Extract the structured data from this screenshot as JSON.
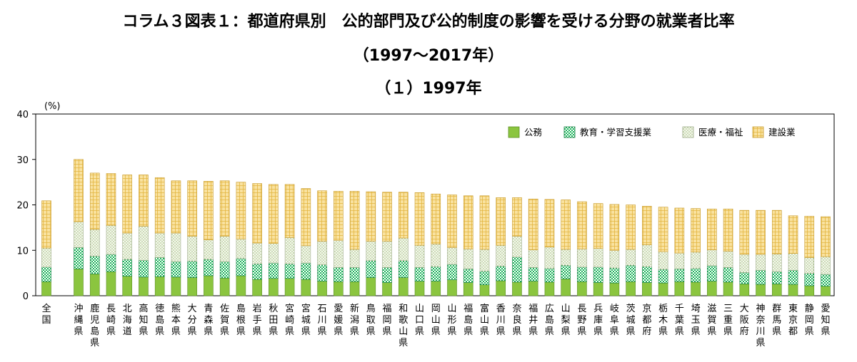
{
  "titles": {
    "main": "コラム３図表１：都道府県別　公的部門及び公的制度の影響を受ける分野の就業者比率",
    "period": "（1997～2017年）",
    "sub": "（１）1997年"
  },
  "colors": {
    "public_service": "#8bc53f",
    "education": "#1bb35a",
    "medical": "#e8f0d8",
    "construction": "#f7d88a"
  },
  "chart_data": {
    "type": "bar",
    "stacked": true,
    "unit": "(%)",
    "ylim": [
      0,
      40
    ],
    "yticks": [
      0,
      10,
      20,
      30,
      40
    ],
    "grid": false,
    "legend_position": "top-right",
    "categories": [
      "全国",
      "沖縄県",
      "鹿児島県",
      "長崎県",
      "北海道",
      "高知県",
      "徳島県",
      "熊本県",
      "大分県",
      "青森県",
      "佐賀県",
      "島根県",
      "岩手県",
      "秋田県",
      "宮崎県",
      "宮城県",
      "石川県",
      "愛媛県",
      "新潟県",
      "鳥取県",
      "福岡県",
      "和歌山県",
      "山口県",
      "岡山県",
      "山形県",
      "福島県",
      "富山県",
      "香川県",
      "奈良県",
      "福井県",
      "広島県",
      "山梨県",
      "長野県",
      "兵庫県",
      "岐阜県",
      "茨城県",
      "京都府",
      "栃木県",
      "千葉県",
      "埼玉県",
      "滋賀県",
      "三重県",
      "大阪府",
      "神奈川県",
      "群馬県",
      "東京都",
      "静岡県",
      "愛知県"
    ],
    "series": [
      {
        "name": "公務",
        "values": [
          3.1,
          5.9,
          4.8,
          5.3,
          4.3,
          4.1,
          4.2,
          4.1,
          4.0,
          4.4,
          3.9,
          4.4,
          3.6,
          3.8,
          3.8,
          3.6,
          3.2,
          3.1,
          3.1,
          4.0,
          2.9,
          4.0,
          3.2,
          3.2,
          3.5,
          2.9,
          2.4,
          3.3,
          3.0,
          3.2,
          3.0,
          3.7,
          3.1,
          2.9,
          2.8,
          3.1,
          2.9,
          2.8,
          3.1,
          3.0,
          3.2,
          3.0,
          2.6,
          2.5,
          2.6,
          2.5,
          2.2,
          2.1
        ]
      },
      {
        "name": "教育・学習支援業",
        "values": [
          3.2,
          4.7,
          3.9,
          3.8,
          3.7,
          3.7,
          4.2,
          3.4,
          3.6,
          3.6,
          3.6,
          3.8,
          3.4,
          3.4,
          3.2,
          3.6,
          3.6,
          3.1,
          3.1,
          3.7,
          3.3,
          3.7,
          3.0,
          3.2,
          3.4,
          3.0,
          3.0,
          3.2,
          5.5,
          3.0,
          3.0,
          3.0,
          3.2,
          3.4,
          3.3,
          3.6,
          3.5,
          3.0,
          2.8,
          3.0,
          3.4,
          3.2,
          2.5,
          3.1,
          2.7,
          3.1,
          2.7,
          2.6
        ]
      },
      {
        "name": "医療・福祉",
        "values": [
          4.2,
          5.7,
          5.9,
          6.4,
          5.8,
          7.5,
          5.4,
          6.3,
          5.5,
          4.3,
          5.6,
          4.3,
          4.6,
          4.3,
          5.8,
          3.8,
          5.2,
          6.0,
          4.0,
          4.3,
          5.8,
          5.0,
          4.9,
          5.0,
          3.7,
          4.4,
          4.8,
          4.6,
          4.6,
          3.9,
          4.7,
          3.5,
          4.0,
          4.1,
          3.9,
          3.5,
          4.8,
          3.9,
          3.5,
          3.6,
          3.5,
          3.6,
          4.0,
          3.5,
          3.9,
          3.7,
          3.5,
          3.9
        ]
      },
      {
        "name": "建設業",
        "values": [
          10.4,
          13.7,
          12.4,
          11.4,
          12.8,
          11.3,
          12.2,
          11.5,
          12.2,
          12.9,
          12.2,
          12.5,
          13.1,
          13.0,
          11.7,
          12.6,
          11.1,
          10.8,
          12.8,
          10.9,
          10.8,
          10.1,
          11.6,
          11.0,
          11.6,
          11.7,
          11.8,
          10.5,
          8.5,
          11.2,
          10.5,
          10.9,
          10.4,
          9.9,
          10.1,
          9.8,
          8.5,
          9.8,
          9.9,
          9.6,
          9.0,
          9.3,
          9.7,
          9.7,
          9.6,
          8.3,
          9.1,
          8.8
        ]
      }
    ]
  }
}
